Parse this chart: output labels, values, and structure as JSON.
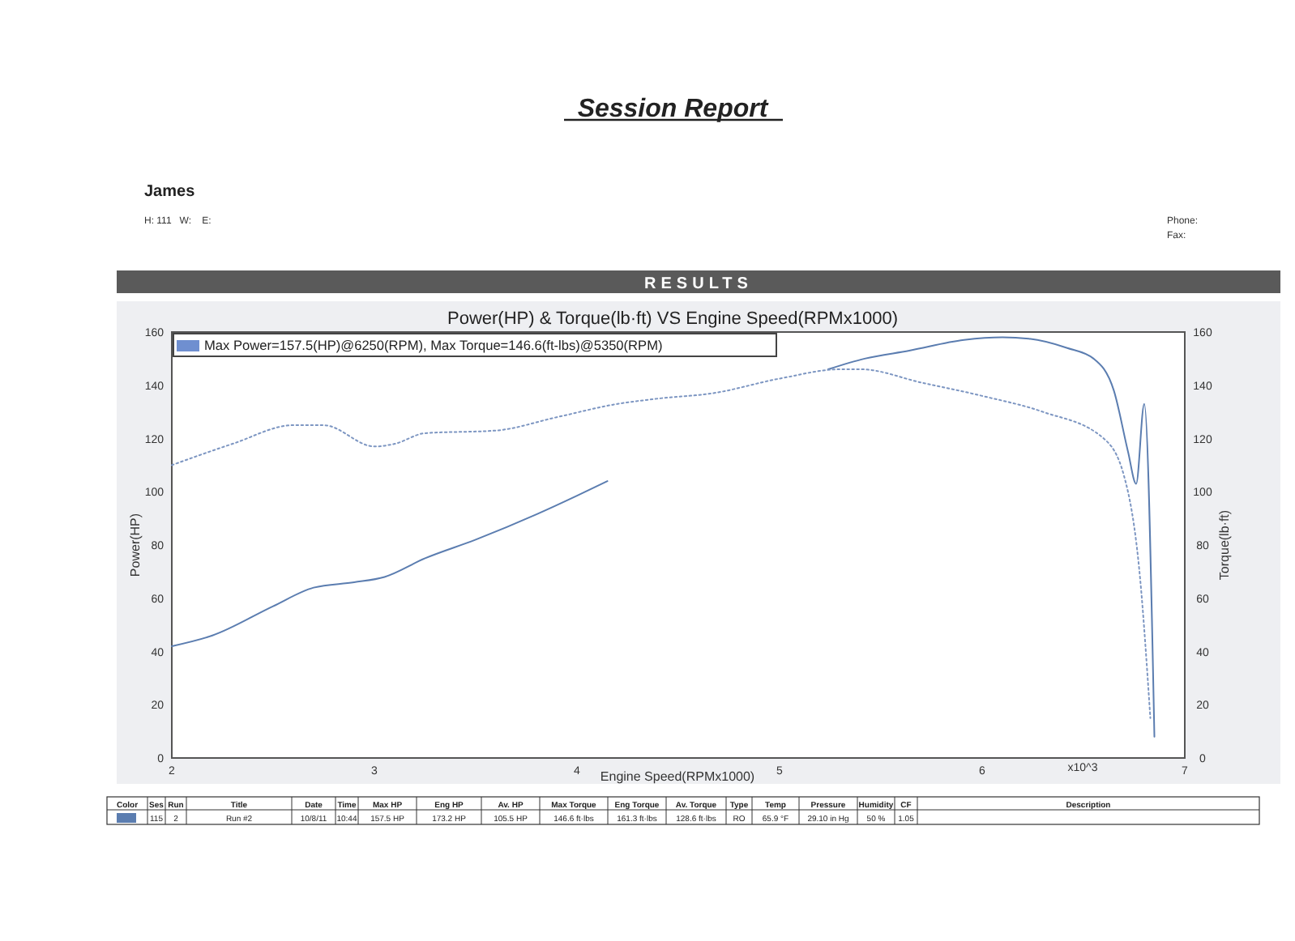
{
  "chart_data": {
    "type": "line",
    "title": "Power(HP) & Torque(lb·ft) VS Engine Speed(RPMx1000)",
    "xlabel": "Engine Speed(RPMx1000)",
    "ylabel": "Power(HP)",
    "y2label": "Torque(lb·ft)",
    "xlim": [
      2,
      7
    ],
    "xticks": [
      2,
      3,
      4,
      5,
      6,
      7
    ],
    "ylim": [
      0,
      160
    ],
    "yticks": [
      0,
      20,
      40,
      60,
      80,
      100,
      120,
      140,
      160
    ],
    "y2lim": [
      0,
      160
    ],
    "y2ticks": [
      0,
      20,
      40,
      60,
      80,
      100,
      120,
      140,
      160
    ],
    "grid": false,
    "series": [
      {
        "color": "#5b7db0",
        "line_style": "solid",
        "x": [
          2,
          2.2,
          2.5,
          2.7,
          2.9,
          3.05,
          3.25,
          3.5,
          3.8,
          4,
          4.15,
          4.2,
          5.24,
          5.42,
          5.64,
          5.91,
          6.1,
          6.23,
          6.42,
          6.55,
          6.65,
          6.72,
          6.76,
          6.8,
          6.85
        ],
        "values": [
          42,
          46,
          57,
          64,
          66,
          68,
          75,
          82,
          91.5,
          98.5,
          104,
          null,
          146,
          150,
          153,
          157,
          158,
          157.5,
          154,
          150,
          138,
          115,
          103,
          133,
          8
        ]
      },
      {
        "color": "#7d96c2",
        "line_style": "dotted",
        "x": [
          2,
          2.3,
          2.6,
          2.75,
          3,
          3.1,
          3.25,
          3.6,
          3.9,
          4.2,
          4.4,
          4.67,
          5,
          5.3,
          5.4,
          5.7,
          6,
          6.3,
          6.6,
          6.7,
          6.78,
          6.83
        ],
        "values": [
          110,
          118,
          125,
          125,
          117,
          118,
          122,
          123,
          128,
          133,
          135,
          137,
          142.5,
          146,
          146,
          141,
          136,
          130,
          120,
          106,
          67,
          15
        ]
      }
    ],
    "annotations": [
      "Session Report",
      "James",
      "H: 111   W:    E:",
      "Phone:",
      "Fax:",
      "RESULTS",
      "Max Power=157.5(HP)@6250(RPM), Max Torque=146.6(ft-lbs)@5350(RPM)",
      "x10^3",
      "Color",
      "Ses",
      "Run",
      "Title",
      "Date",
      "Time",
      "Max HP",
      "Eng HP",
      "Av. HP",
      "Max Torque",
      "Eng Torque",
      "Av. Torque",
      "Type",
      "Temp",
      "Pressure",
      "Humidity",
      "CF",
      "Description",
      "115",
      "2",
      "Run #2",
      "10/8/11",
      "10:44",
      "157.5 HP",
      "173.2 HP",
      "105.5 HP",
      "146.6 ft·lbs",
      "161.3 ft·lbs",
      "128.6 ft·lbs",
      "RO",
      "65.9 °F",
      "29.10 in Hg",
      "50 %",
      "1.05"
    ]
  }
}
